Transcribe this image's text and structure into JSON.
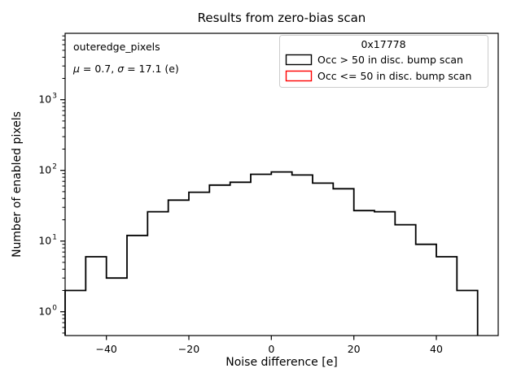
{
  "chart_data": {
    "type": "histogram-step",
    "title": "Results from zero-bias scan",
    "xlabel": "Noise difference [e]",
    "ylabel": "Number of enabled pixels",
    "yscale": "log",
    "grid": false,
    "xlim": [
      -50,
      55
    ],
    "ylim": [
      0.46,
      8700
    ],
    "xticks": [
      {
        "value": -40,
        "label": "−40"
      },
      {
        "value": -20,
        "label": "−20"
      },
      {
        "value": 0,
        "label": "0"
      },
      {
        "value": 20,
        "label": "20"
      },
      {
        "value": 40,
        "label": "40"
      }
    ],
    "yticks": [
      {
        "value": 1,
        "base": "10",
        "exp": "0"
      },
      {
        "value": 10,
        "base": "10",
        "exp": "1"
      },
      {
        "value": 100,
        "base": "10",
        "exp": "2"
      },
      {
        "value": 1000,
        "base": "10",
        "exp": "3"
      }
    ],
    "bin_edges": [
      -50,
      -45,
      -40,
      -35,
      -30,
      -25,
      -20,
      -15,
      -10,
      -5,
      0,
      5,
      10,
      15,
      20,
      25,
      30,
      35,
      40,
      45,
      50
    ],
    "series": [
      {
        "name": "Occ > 50 in disc. bump scan",
        "color": "#000000",
        "counts": [
          2,
          6,
          3,
          12,
          26,
          38,
          49,
          62,
          68,
          88,
          95,
          86,
          66,
          55,
          27,
          26,
          17,
          9,
          6,
          2
        ]
      },
      {
        "name": "Occ <= 50 in disc. bump scan",
        "color": "#ff0000"
      }
    ],
    "legend": {
      "position": "upper right",
      "title": "0x17778",
      "entries": [
        {
          "label": "Occ > 50 in disc. bump scan",
          "color": "#000000"
        },
        {
          "label": "Occ <= 50 in disc. bump scan",
          "color": "#ff0000"
        }
      ]
    },
    "stats": {
      "dataset": "outeredge_pixels",
      "mu_symbol": "μ",
      "mu_text": " = 0.7, ",
      "sigma_symbol": "σ",
      "sigma_text": " = 17.1 (e)"
    },
    "colors": {
      "axis": "#000000",
      "legend_frame": "#cccccc",
      "background": "#ffffff"
    }
  }
}
